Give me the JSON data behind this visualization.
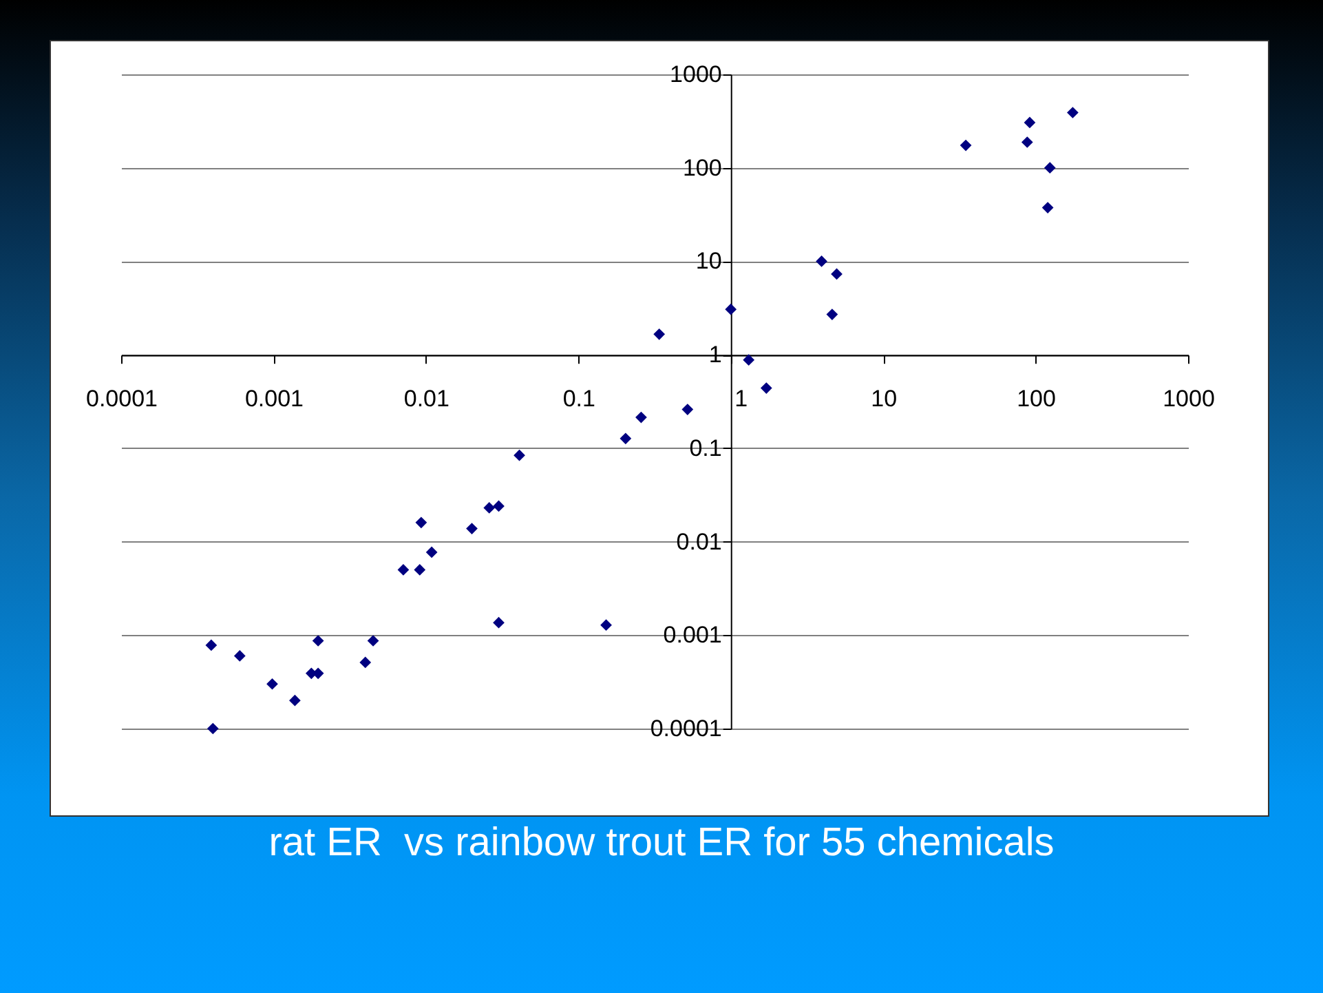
{
  "chart_data": {
    "type": "scatter",
    "title": "rat ER  vs rainbow trout ER for 55 chemicals",
    "x": [
      0.041,
      0.026,
      0.03,
      0.0093,
      0.02,
      0.0109,
      0.0071,
      0.0091,
      0.03,
      0.00039,
      0.0006,
      0.00196,
      0.0045,
      0.004,
      0.00098,
      0.00177,
      0.00196,
      0.00138,
      0.0004,
      0.152,
      0.204,
      0.258,
      0.339,
      0.52,
      1.0,
      1.31,
      1.71,
      3.94,
      4.95,
      4.62,
      34.8,
      91.4,
      88,
      124,
      120,
      175
    ],
    "series": [
      {
        "color": "#000080",
        "values": [
          0.084,
          0.023,
          0.024,
          0.016,
          0.0138,
          0.0077,
          0.005,
          0.005,
          0.00136,
          0.00078,
          0.0006,
          0.00087,
          0.00087,
          0.00051,
          0.0003,
          0.00039,
          0.00039,
          0.0002,
          0.0001,
          0.00128,
          0.127,
          0.214,
          1.66,
          0.26,
          3.06,
          0.88,
          0.44,
          10,
          7.3,
          2.7,
          174,
          305,
          188,
          100,
          37.5,
          390
        ]
      }
    ],
    "log": "xy",
    "xlim": [
      0.0001,
      1000
    ],
    "ylim": [
      0.0001,
      1000
    ],
    "xticks": [
      0.0001,
      0.001,
      0.01,
      0.1,
      1,
      10,
      100,
      1000
    ],
    "yticks": [
      0.0001,
      0.001,
      0.01,
      0.1,
      1,
      10,
      100,
      1000
    ],
    "grid": "y",
    "marker": "diamond"
  }
}
